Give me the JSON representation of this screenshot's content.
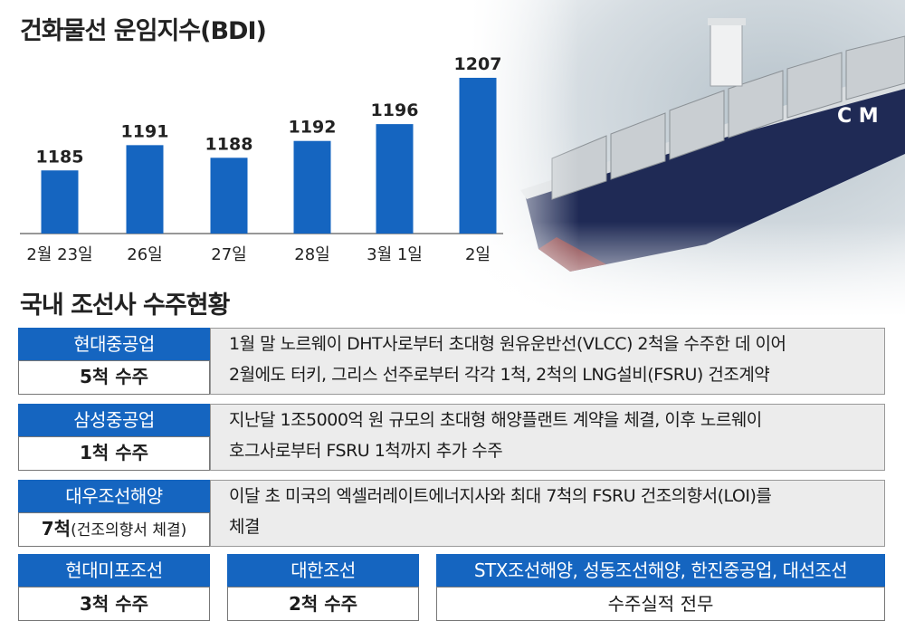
{
  "chart_data": {
    "type": "bar",
    "title": "건화물선 운임지수(BDI)",
    "categories": [
      "2월 23일",
      "26일",
      "27일",
      "28일",
      "3월 1일",
      "2일"
    ],
    "values": [
      1185,
      1191,
      1188,
      1192,
      1196,
      1207
    ],
    "ylim": [
      1170,
      1210
    ],
    "grid": false,
    "bar_color": "#1565c0"
  },
  "section_title": "국내 조선사 수주현황",
  "companies": [
    {
      "name": "현대중공업",
      "orders": "5척 수주",
      "orders_note": "",
      "desc_lines": [
        "1월 말 노르웨이 DHT사로부터 초대형 원유운반선(VLCC) 2척을 수주한 데 이어",
        "2월에도 터키, 그리스 선주로부터 각각 1척, 2척의 LNG설비(FSRU) 건조계약"
      ]
    },
    {
      "name": "삼성중공업",
      "orders": "1척 수주",
      "orders_note": "",
      "desc_lines": [
        "지난달 1조5000억 원 규모의 초대형 해양플랜트 계약을 체결, 이후 노르웨이",
        "호그사로부터 FSRU 1척까지 추가 수주"
      ]
    },
    {
      "name": "대우조선해양",
      "orders": "7척",
      "orders_note": "(건조의향서 체결)",
      "desc_lines": [
        "이달 초 미국의 엑셀러레이트에너지사와 최대 7척의 FSRU 건조의향서(LOI)를",
        "체결"
      ]
    }
  ],
  "bottom": [
    {
      "name": "현대미포조선",
      "value": "3척 수주"
    },
    {
      "name": "대한조선",
      "value": "2척 수주"
    },
    {
      "name": "STX조선해양, 성동조선해양, 한진중공업, 대선조선",
      "value": "수주실적 전무"
    }
  ],
  "colors": {
    "accent": "#1565c0",
    "desc_bg": "#ececec",
    "hull": "#1f2a55"
  }
}
